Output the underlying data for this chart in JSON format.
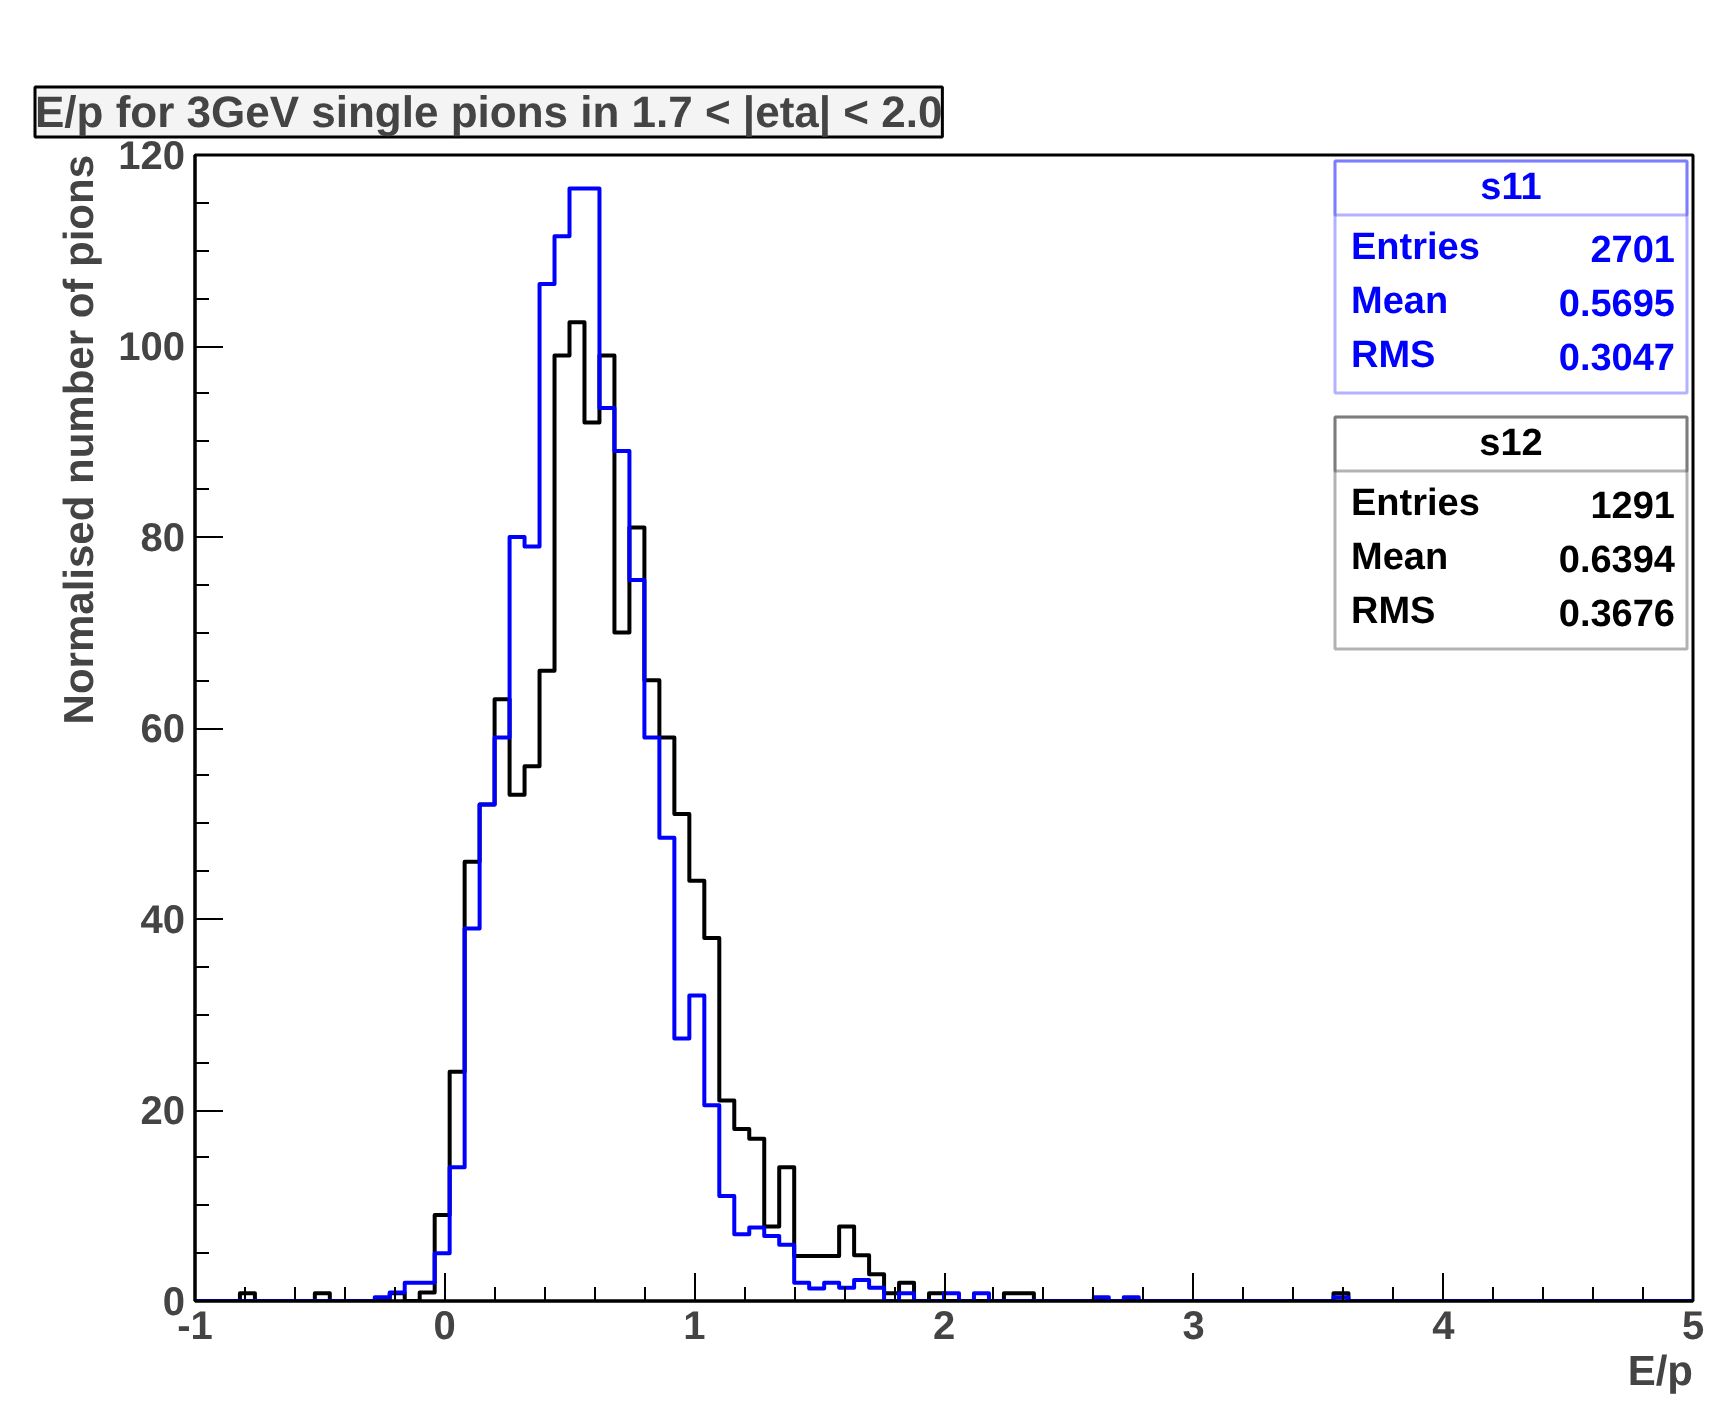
{
  "chart_data": {
    "type": "histogram",
    "title": "E/p for 3GeV single pions in 1.7 < |eta| < 2.0",
    "xlabel": "E/p",
    "ylabel": "Normalised number of pions",
    "bins": [
      -1,
      -0.94,
      -0.88,
      -0.82,
      -0.76,
      -0.7,
      -0.64,
      -0.58,
      -0.52,
      -0.46,
      -0.4,
      -0.34,
      -0.28,
      -0.22,
      -0.16,
      -0.1,
      -0.04,
      0.02,
      0.08,
      0.14,
      0.2,
      0.26,
      0.32,
      0.38,
      0.44,
      0.5,
      0.56,
      0.62,
      0.68,
      0.74,
      0.8,
      0.86,
      0.92,
      0.98,
      1.04,
      1.1,
      1.16,
      1.22,
      1.28,
      1.34,
      1.4,
      1.46,
      1.52,
      1.58,
      1.64,
      1.7,
      1.76,
      1.82,
      1.88,
      1.94,
      2,
      2.06,
      2.12,
      2.18,
      2.24,
      2.3,
      2.36,
      2.42,
      2.48,
      2.54,
      2.6,
      2.66,
      2.72,
      2.78,
      2.84,
      2.9,
      2.96,
      3.02,
      3.08,
      3.14,
      3.2,
      3.26,
      3.32,
      3.38,
      3.44,
      3.5,
      3.56,
      3.62,
      3.68,
      3.74,
      3.8,
      3.86,
      3.92,
      3.98,
      4.04,
      4.1,
      4.16,
      4.22,
      4.28,
      4.34,
      4.4,
      4.46,
      4.52,
      4.58,
      4.64,
      4.7,
      4.76,
      4.82,
      4.88,
      4.94,
      5
    ],
    "series": [
      {
        "name": "s11",
        "color": "#0000ff",
        "values": [
          0,
          0,
          0,
          0,
          0,
          0,
          0,
          0,
          0,
          0,
          0,
          0,
          0.4,
          0.9,
          1.9,
          1.9,
          5,
          14,
          39,
          52,
          59,
          80,
          79,
          106.5,
          111.5,
          116.5,
          116.5,
          93.5,
          89,
          75.5,
          59,
          48.5,
          27.5,
          32,
          20.5,
          11,
          7,
          7.7,
          6.8,
          5.9,
          1.9,
          1.3,
          1.9,
          1.4,
          2.2,
          1.4,
          0,
          0.8,
          0,
          0,
          0.8,
          0,
          0.8,
          0,
          0,
          0,
          0,
          0,
          0,
          0,
          0.4,
          0,
          0.4,
          0,
          0,
          0,
          0,
          0,
          0,
          0,
          0,
          0,
          0,
          0,
          0,
          0,
          0.4,
          0,
          0,
          0,
          0,
          0,
          0,
          0,
          0,
          0,
          0,
          0,
          0,
          0,
          0,
          0,
          0,
          0,
          0,
          0,
          0,
          0,
          0,
          0
        ]
      },
      {
        "name": "s12",
        "color": "#000000",
        "values": [
          0,
          0,
          0,
          0.8,
          0,
          0,
          0,
          0,
          0.8,
          0,
          0,
          0,
          0,
          0.8,
          0,
          0.9,
          9,
          24,
          46,
          52,
          63,
          53,
          56,
          66,
          99,
          102.5,
          92,
          99,
          70,
          81,
          65,
          59,
          51,
          44,
          38,
          21,
          18,
          17,
          7.8,
          14,
          4.7,
          4.7,
          4.7,
          7.8,
          4.8,
          2.8,
          0.8,
          1.9,
          0,
          0.8,
          0,
          0,
          0,
          0,
          0.8,
          0.8,
          0,
          0,
          0,
          0,
          0,
          0,
          0,
          0,
          0,
          0,
          0,
          0,
          0,
          0,
          0,
          0,
          0,
          0,
          0,
          0,
          0.8,
          0,
          0,
          0,
          0,
          0,
          0,
          0,
          0,
          0,
          0,
          0,
          0,
          0,
          0,
          0,
          0,
          0,
          0,
          0,
          0,
          0,
          0,
          0
        ]
      }
    ],
    "annotations": [
      "Entries 2701",
      "Mean 0.5695",
      "RMS 0.3047",
      "Entries 1291",
      "Mean 0.6394",
      "RMS 0.3676"
    ],
    "xlim": [
      -1,
      5
    ],
    "xticks": [
      -1,
      0,
      1,
      2,
      3,
      4,
      5
    ],
    "ylim": [
      0,
      120
    ],
    "yticks": [
      0,
      20,
      40,
      60,
      80,
      100,
      120
    ],
    "legend": "top right"
  }
}
